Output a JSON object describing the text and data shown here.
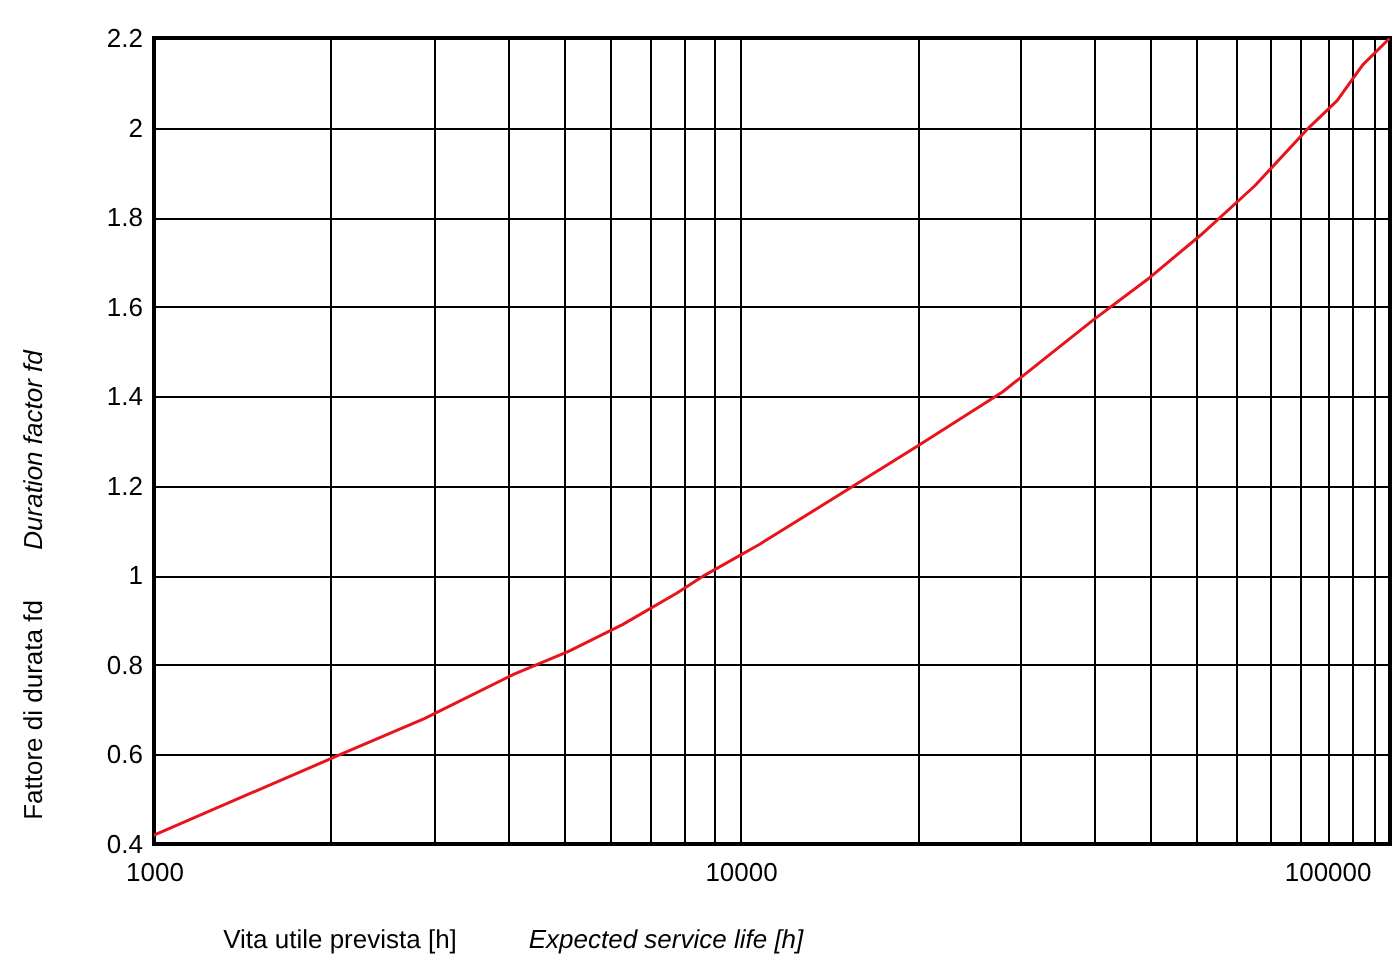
{
  "chart_data": {
    "type": "line",
    "xlabel": "Vita utile prevista [h]",
    "ylabel": "Fattore di durata fd",
    "annotations": [
      "Expected service life [h]",
      "Duration factor fd"
    ],
    "x": [
      1000,
      2080,
      2890,
      4120,
      5090,
      6290,
      7780,
      8680,
      10800,
      20100,
      28000,
      39900,
      49300,
      60900,
      75300,
      93100,
      104000,
      115000,
      128000
    ],
    "series": [
      {
        "color": "#e8141c",
        "values": [
          0.42,
          0.6,
          0.68,
          0.78,
          0.83,
          0.89,
          0.96,
          1.0,
          1.07,
          1.29,
          1.41,
          1.57,
          1.66,
          1.76,
          1.87,
          2.0,
          2.06,
          2.14,
          2.2
        ]
      }
    ],
    "log": "x",
    "xlim": [
      1000,
      128000
    ],
    "xticks": [
      1000,
      {
        "value": 2000,
        "label": null
      },
      {
        "value": 3000,
        "label": null
      },
      {
        "value": 4000,
        "label": null
      },
      {
        "value": 5000,
        "label": null
      },
      {
        "value": 6000,
        "label": null
      },
      {
        "value": 7000,
        "label": null
      },
      {
        "value": 8000,
        "label": null
      },
      {
        "value": 9000,
        "label": null
      },
      10000,
      {
        "value": 20000,
        "label": null
      },
      {
        "value": 30000,
        "label": null
      },
      {
        "value": 40000,
        "label": null
      },
      {
        "value": 50000,
        "label": null
      },
      {
        "value": 60000,
        "label": null
      },
      {
        "value": 70000,
        "label": null
      },
      {
        "value": 80000,
        "label": null
      },
      {
        "value": 90000,
        "label": null
      },
      100000,
      {
        "value": 110000,
        "label": null
      },
      {
        "value": 120000,
        "label": null
      }
    ],
    "ylim": [
      0.4,
      2.2
    ],
    "yticks": [
      0.4,
      0.6,
      0.8,
      1,
      1.2,
      1.4,
      1.6,
      1.8,
      2,
      2.2
    ],
    "grid": true,
    "marker": "none",
    "line_style": "solid"
  }
}
